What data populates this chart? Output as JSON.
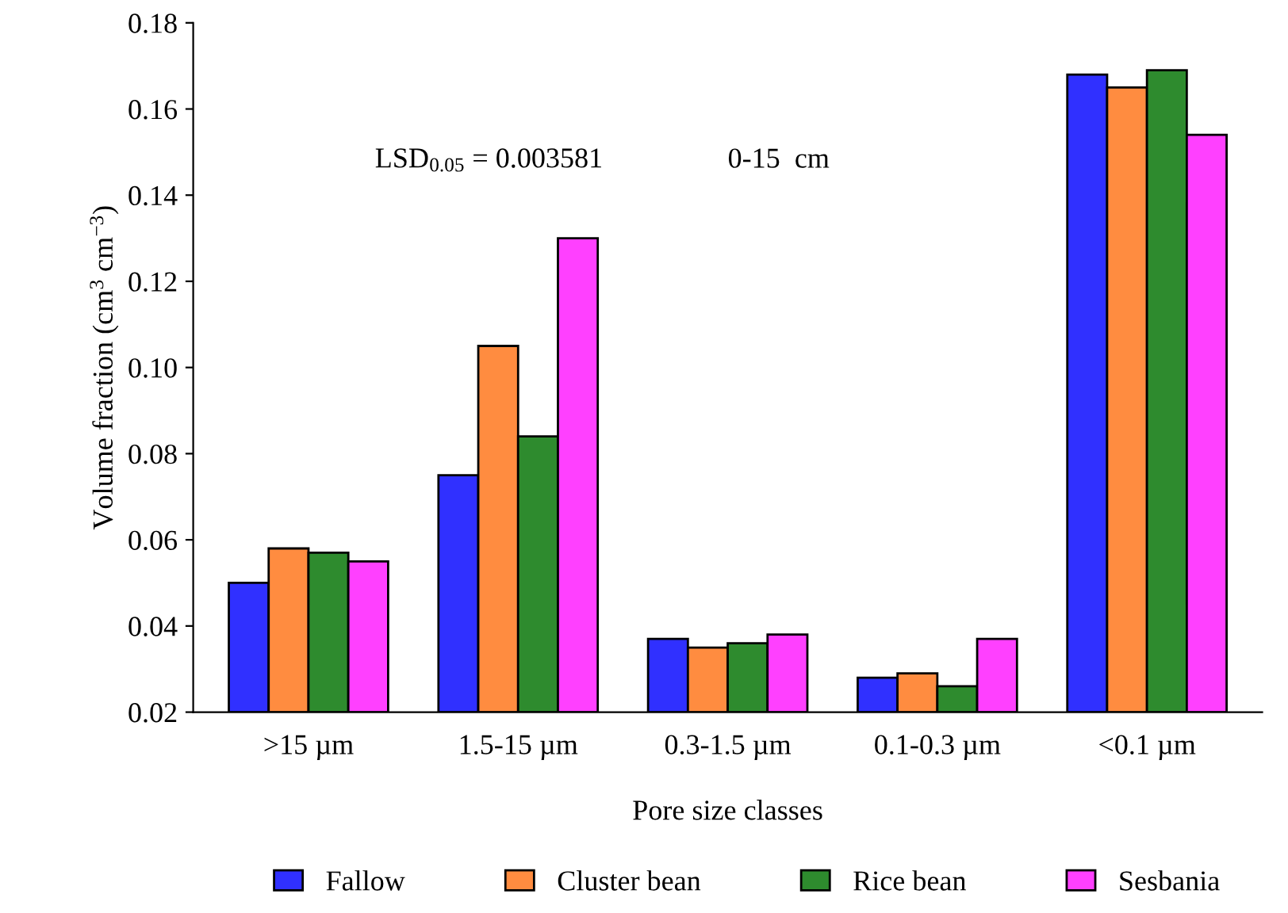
{
  "chart_data": {
    "type": "bar",
    "xlabel": "Pore size classes",
    "ylabel": "Volume fraction (cm$^{3}$ cm$^{−3}$)",
    "categories": [
      ">15 µm",
      "1.5-15 µm",
      "0.3-1.5 µm",
      "0.1-0.3 µm",
      "<0.1 µm"
    ],
    "series": [
      {
        "name": "Fallow",
        "color": "#3030ff",
        "values": [
          0.05,
          0.075,
          0.037,
          0.028,
          0.168
        ]
      },
      {
        "name": "Cluster bean",
        "color": "#ff8c40",
        "values": [
          0.058,
          0.105,
          0.035,
          0.029,
          0.165
        ]
      },
      {
        "name": "Rice bean",
        "color": "#2e8b2e",
        "values": [
          0.057,
          0.084,
          0.036,
          0.026,
          0.169
        ]
      },
      {
        "name": "Sesbania",
        "color": "#ff40ff",
        "values": [
          0.055,
          0.13,
          0.038,
          0.037,
          0.154
        ]
      }
    ],
    "ylim": [
      0.02,
      0.18
    ],
    "yticks": [
      0.02,
      0.04,
      0.06,
      0.08,
      {
        "value": 0.1,
        "label": "0.10"
      },
      0.12,
      0.14,
      0.16,
      0.18
    ],
    "annotations": [
      "LSD$_{0.05}$ = 0.003581",
      "0-15  cm"
    ],
    "grid": false,
    "legend": "bottom"
  }
}
